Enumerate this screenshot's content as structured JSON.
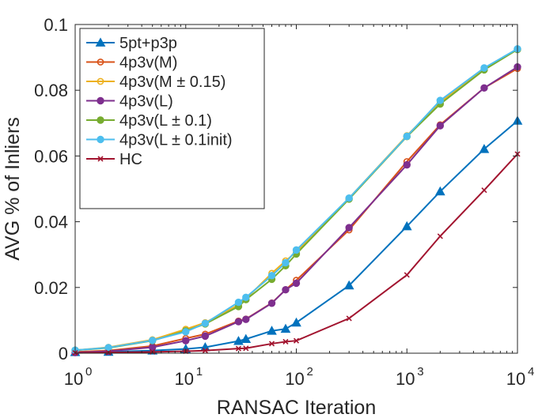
{
  "chart_data": {
    "type": "line",
    "xscale": "log",
    "xlabel": "RANSAC Iteration",
    "ylabel": "AVG % of Inliers",
    "xlim": [
      1,
      10000
    ],
    "ylim": [
      0,
      0.1
    ],
    "xticks": [
      {
        "value": 1,
        "base": "10",
        "exp": "0"
      },
      {
        "value": 10,
        "base": "10",
        "exp": "1"
      },
      {
        "value": 100,
        "base": "10",
        "exp": "2"
      },
      {
        "value": 1000,
        "base": "10",
        "exp": "3"
      },
      {
        "value": 10000,
        "base": "10",
        "exp": "4"
      }
    ],
    "yticks": [
      {
        "value": 0,
        "label": "0"
      },
      {
        "value": 0.02,
        "label": "0.02"
      },
      {
        "value": 0.04,
        "label": "0.04"
      },
      {
        "value": 0.06,
        "label": "0.06"
      },
      {
        "value": 0.08,
        "label": "0.08"
      },
      {
        "value": 0.1,
        "label": "0.1"
      }
    ],
    "legend_position": "top-left",
    "x": [
      1,
      2,
      5,
      10,
      15,
      30,
      35,
      60,
      80,
      100,
      300,
      1000,
      2000,
      5000,
      10000
    ],
    "series": [
      {
        "name": "5pt+p3p",
        "color": "#0072BD",
        "marker": "triangle",
        "values": [
          0.0003,
          0.0004,
          0.0008,
          0.0013,
          0.0018,
          0.0037,
          0.0043,
          0.0068,
          0.0074,
          0.0093,
          0.0206,
          0.0386,
          0.0492,
          0.0621,
          0.0707
        ]
      },
      {
        "name": "4p3v(M)",
        "color": "#D95319",
        "marker": "circle-open",
        "values": [
          0.0004,
          0.0008,
          0.0022,
          0.0045,
          0.0058,
          0.0098,
          0.0104,
          0.0153,
          0.0193,
          0.0222,
          0.0375,
          0.0583,
          0.0695,
          0.0807,
          0.0866
        ]
      },
      {
        "name": "4p3v(M ± 0.15)",
        "color": "#EDB120",
        "marker": "circle-open",
        "values": [
          0.0009,
          0.0018,
          0.0041,
          0.0073,
          0.0093,
          0.0147,
          0.0166,
          0.0243,
          0.0281,
          0.0308,
          0.0472,
          0.0662,
          0.0763,
          0.0866,
          0.0925
        ]
      },
      {
        "name": "4p3v(L)",
        "color": "#7E2F8E",
        "marker": "circle-filled",
        "values": [
          0.0002,
          0.0006,
          0.0018,
          0.0038,
          0.0052,
          0.0096,
          0.0103,
          0.0152,
          0.0193,
          0.0213,
          0.0382,
          0.0573,
          0.0692,
          0.0807,
          0.0871
        ]
      },
      {
        "name": "4p3v(L ± 0.1)",
        "color": "#77AC30",
        "marker": "circle-filled",
        "values": [
          0.0009,
          0.0016,
          0.0038,
          0.0068,
          0.0089,
          0.0142,
          0.0163,
          0.0225,
          0.0266,
          0.0302,
          0.0469,
          0.0659,
          0.0758,
          0.0862,
          0.0924
        ]
      },
      {
        "name": "4p3v(L ± 0.1init)",
        "color": "#4DBEEE",
        "marker": "circle-filled",
        "values": [
          0.0009,
          0.0017,
          0.0039,
          0.0065,
          0.0091,
          0.0155,
          0.017,
          0.0236,
          0.0275,
          0.0314,
          0.0472,
          0.066,
          0.0769,
          0.0868,
          0.0926
        ]
      },
      {
        "name": "HC",
        "color": "#A2142F",
        "marker": "x",
        "values": [
          0.0001,
          0.0002,
          0.0004,
          0.0006,
          0.0008,
          0.0014,
          0.0015,
          0.0029,
          0.0035,
          0.0038,
          0.0106,
          0.0238,
          0.0356,
          0.0496,
          0.0606
        ]
      }
    ]
  }
}
